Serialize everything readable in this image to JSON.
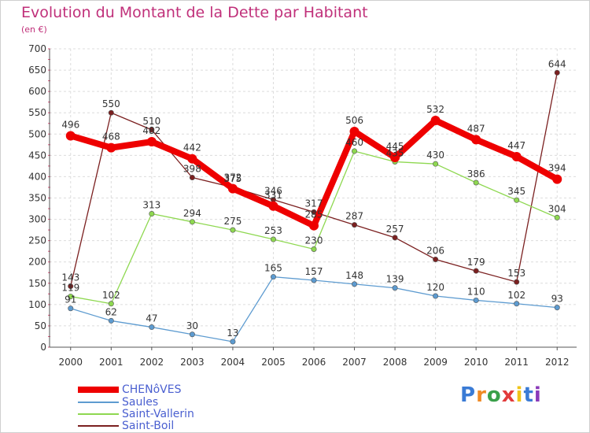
{
  "title": "Evolution du Montant de la Dette par Habitant",
  "unit": "(en €)",
  "brand": "Proxiti",
  "chart_data": {
    "type": "line",
    "x": [
      "2000",
      "2001",
      "2002",
      "2003",
      "2004",
      "2005",
      "2006",
      "2007",
      "2008",
      "2009",
      "2010",
      "2011",
      "2012"
    ],
    "ylim": [
      0,
      700
    ],
    "yticks": [
      0,
      50,
      100,
      150,
      200,
      250,
      300,
      350,
      400,
      450,
      500,
      550,
      600,
      650,
      700
    ],
    "grid": true,
    "legend_position": "bottom-left",
    "series": [
      {
        "name": "CHENôVES",
        "color": "#ee0000",
        "values": [
          496,
          468,
          482,
          442,
          372,
          331,
          285,
          506,
          445,
          532,
          487,
          447,
          394
        ],
        "labels": [
          "496",
          "468",
          "482",
          "442",
          "372",
          "331",
          "285",
          "506",
          "445",
          "532",
          "487",
          "447",
          "394"
        ]
      },
      {
        "name": "Saules",
        "color": "#5d9bd0",
        "values": [
          91,
          62,
          47,
          30,
          13,
          165,
          157,
          148,
          139,
          120,
          110,
          102,
          93
        ],
        "labels": [
          "91",
          "62",
          "47",
          "30",
          "13",
          "165",
          "157",
          "148",
          "139",
          "120",
          "110",
          "102",
          "93"
        ]
      },
      {
        "name": "Saint-Vallerin",
        "color": "#8ed850",
        "values": [
          119,
          102,
          313,
          294,
          275,
          253,
          230,
          460,
          435,
          430,
          386,
          345,
          304
        ],
        "labels": [
          "119",
          "102",
          "313",
          "294",
          "275",
          "253",
          "230",
          "460",
          "435",
          "430",
          "386",
          "345",
          "304"
        ]
      },
      {
        "name": "Saint-Boil",
        "color": "#7b2020",
        "values": [
          143,
          550,
          510,
          398,
          375,
          346,
          317,
          287,
          257,
          206,
          179,
          153,
          644
        ],
        "labels": [
          "143",
          "550",
          "510",
          "398",
          "375",
          "346",
          "317",
          "287",
          "257",
          "206",
          "179",
          "153",
          "644"
        ]
      }
    ]
  }
}
